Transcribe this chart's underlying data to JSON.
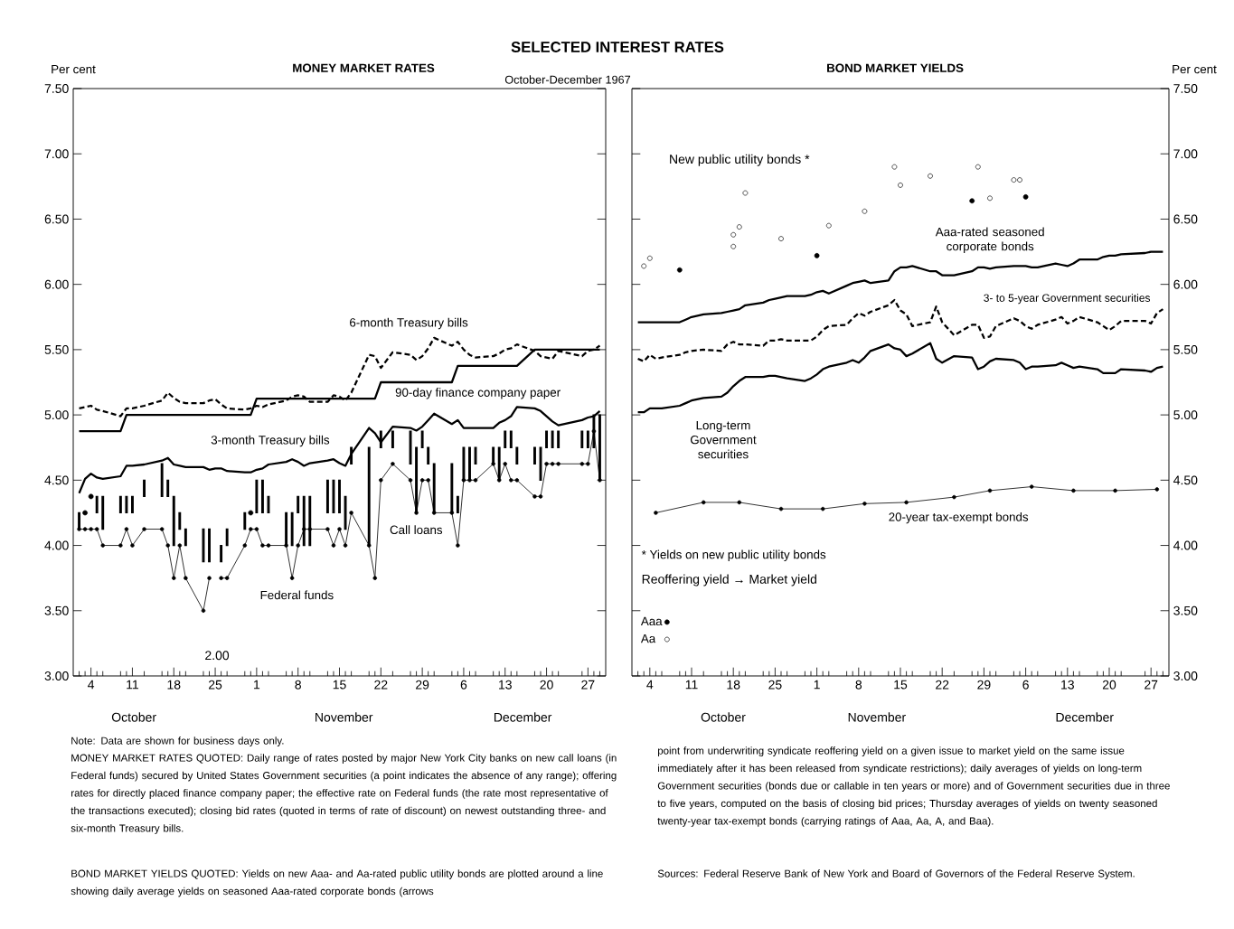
{
  "chart_data": [
    {
      "type": "line",
      "title": "MONEY MARKET RATES",
      "ylabel": "Per cent",
      "legend": false,
      "x": [
        "1967-10-02",
        "1967-10-03",
        "1967-10-04",
        "1967-10-05",
        "1967-10-06",
        "1967-10-09",
        "1967-10-10",
        "1967-10-11",
        "1967-10-13",
        "1967-10-16",
        "1967-10-17",
        "1967-10-18",
        "1967-10-19",
        "1967-10-20",
        "1967-10-23",
        "1967-10-24",
        "1967-10-25",
        "1967-10-26",
        "1967-10-27",
        "1967-10-30",
        "1967-10-31",
        "1967-11-01",
        "1967-11-02",
        "1967-11-03",
        "1967-11-06",
        "1967-11-07",
        "1967-11-08",
        "1967-11-09",
        "1967-11-10",
        "1967-11-13",
        "1967-11-14",
        "1967-11-15",
        "1967-11-16",
        "1967-11-17",
        "1967-11-20",
        "1967-11-21",
        "1967-11-22",
        "1967-11-24",
        "1967-11-27",
        "1967-11-28",
        "1967-11-29",
        "1967-11-30",
        "1967-12-01",
        "1967-12-04",
        "1967-12-05",
        "1967-12-06",
        "1967-12-07",
        "1967-12-08",
        "1967-12-11",
        "1967-12-12",
        "1967-12-13",
        "1967-12-14",
        "1967-12-15",
        "1967-12-18",
        "1967-12-19",
        "1967-12-20",
        "1967-12-21",
        "1967-12-22",
        "1967-12-26",
        "1967-12-27",
        "1967-12-28",
        "1967-12-29"
      ],
      "xlim": [
        "1967-10-01",
        "1967-12-30"
      ],
      "xticks": [
        {
          "value": "1967-10-02",
          "label": null
        },
        {
          "value": "1967-10-03",
          "label": null
        },
        {
          "value": "1967-10-04",
          "label": "4"
        },
        {
          "value": "1967-10-05",
          "label": null
        },
        {
          "value": "1967-10-06",
          "label": null
        },
        {
          "value": "1967-10-09",
          "label": null
        },
        {
          "value": "1967-10-10",
          "label": null
        },
        {
          "value": "1967-10-11",
          "label": "11"
        },
        {
          "value": "1967-10-13",
          "label": null
        },
        {
          "value": "1967-10-16",
          "label": null
        },
        {
          "value": "1967-10-17",
          "label": null
        },
        {
          "value": "1967-10-18",
          "label": "18"
        },
        {
          "value": "1967-10-19",
          "label": null
        },
        {
          "value": "1967-10-20",
          "label": null
        },
        {
          "value": "1967-10-23",
          "label": null
        },
        {
          "value": "1967-10-24",
          "label": null
        },
        {
          "value": "1967-10-25",
          "label": "25"
        },
        {
          "value": "1967-10-26",
          "label": null
        },
        {
          "value": "1967-10-27",
          "label": null
        },
        {
          "value": "1967-10-30",
          "label": null
        },
        {
          "value": "1967-10-31",
          "label": null
        },
        {
          "value": "1967-11-01",
          "label": "1"
        },
        {
          "value": "1967-11-02",
          "label": null
        },
        {
          "value": "1967-11-03",
          "label": null
        },
        {
          "value": "1967-11-06",
          "label": null
        },
        {
          "value": "1967-11-07",
          "label": null
        },
        {
          "value": "1967-11-08",
          "label": "8"
        },
        {
          "value": "1967-11-09",
          "label": null
        },
        {
          "value": "1967-11-10",
          "label": null
        },
        {
          "value": "1967-11-13",
          "label": null
        },
        {
          "value": "1967-11-14",
          "label": null
        },
        {
          "value": "1967-11-15",
          "label": "15"
        },
        {
          "value": "1967-11-16",
          "label": null
        },
        {
          "value": "1967-11-17",
          "label": null
        },
        {
          "value": "1967-11-20",
          "label": null
        },
        {
          "value": "1967-11-21",
          "label": null
        },
        {
          "value": "1967-11-22",
          "label": "22"
        },
        {
          "value": "1967-11-24",
          "label": null
        },
        {
          "value": "1967-11-27",
          "label": null
        },
        {
          "value": "1967-11-28",
          "label": null
        },
        {
          "value": "1967-11-29",
          "label": "29"
        },
        {
          "value": "1967-11-30",
          "label": null
        },
        {
          "value": "1967-12-01",
          "label": null
        },
        {
          "value": "1967-12-04",
          "label": null
        },
        {
          "value": "1967-12-05",
          "label": null
        },
        {
          "value": "1967-12-06",
          "label": "6"
        },
        {
          "value": "1967-12-07",
          "label": null
        },
        {
          "value": "1967-12-08",
          "label": null
        },
        {
          "value": "1967-12-11",
          "label": null
        },
        {
          "value": "1967-12-12",
          "label": null
        },
        {
          "value": "1967-12-13",
          "label": "13"
        },
        {
          "value": "1967-12-14",
          "label": null
        },
        {
          "value": "1967-12-15",
          "label": null
        },
        {
          "value": "1967-12-18",
          "label": null
        },
        {
          "value": "1967-12-19",
          "label": null
        },
        {
          "value": "1967-12-20",
          "label": "20"
        },
        {
          "value": "1967-12-21",
          "label": null
        },
        {
          "value": "1967-12-22",
          "label": null
        },
        {
          "value": "1967-12-26",
          "label": null
        },
        {
          "value": "1967-12-27",
          "label": "27"
        },
        {
          "value": "1967-12-28",
          "label": null
        },
        {
          "value": "1967-12-29",
          "label": null
        }
      ],
      "ylim": [
        3.0,
        7.5
      ],
      "yticks": [
        {
          "value": 3.0,
          "label": "3.00"
        },
        {
          "value": 3.5,
          "label": "3.50"
        },
        {
          "value": 4.0,
          "label": "4.00"
        },
        {
          "value": 4.5,
          "label": "4.50"
        },
        {
          "value": 5.0,
          "label": "5.00"
        },
        {
          "value": 5.5,
          "label": "5.50"
        },
        {
          "value": 6.0,
          "label": "6.00"
        },
        {
          "value": 6.5,
          "label": "6.50"
        },
        {
          "value": 7.0,
          "label": "7.00"
        },
        {
          "value": 7.5,
          "label": "7.50"
        }
      ],
      "series": [
        {
          "name": "6-month Treasury bills",
          "color": "#000000",
          "line_style": "dashed",
          "values": [
            5.05,
            5.06,
            5.07,
            5.04,
            5.03,
            4.99,
            5.05,
            5.05,
            5.07,
            5.11,
            5.17,
            5.13,
            5.1,
            5.09,
            5.09,
            5.11,
            5.12,
            5.08,
            5.05,
            5.04,
            5.05,
            5.07,
            5.06,
            5.08,
            5.11,
            5.14,
            5.15,
            5.14,
            5.1,
            5.1,
            5.15,
            5.14,
            5.11,
            5.17,
            5.46,
            5.45,
            5.36,
            5.48,
            5.46,
            5.42,
            5.45,
            5.51,
            5.59,
            5.53,
            5.56,
            5.5,
            5.46,
            5.44,
            5.45,
            5.47,
            5.5,
            5.51,
            5.54,
            5.49,
            5.45,
            5.44,
            5.43,
            5.49,
            5.45,
            5.49,
            5.5,
            5.53
          ]
        },
        {
          "name": "90-day finance company paper",
          "color": "#000000",
          "values": [
            4.875,
            4.875,
            4.875,
            4.875,
            4.875,
            4.875,
            5.0,
            5.0,
            5.0,
            5.0,
            5.0,
            5.0,
            5.0,
            5.0,
            5.0,
            5.0,
            5.0,
            5.0,
            5.0,
            5.0,
            5.0,
            5.125,
            5.125,
            5.125,
            5.125,
            5.125,
            5.125,
            5.125,
            5.125,
            5.125,
            5.125,
            5.125,
            5.125,
            5.125,
            5.125,
            5.125,
            5.25,
            5.25,
            5.25,
            5.25,
            5.25,
            5.25,
            5.25,
            5.25,
            5.375,
            5.375,
            5.375,
            5.375,
            5.375,
            5.375,
            5.375,
            5.375,
            5.375,
            5.5,
            5.5,
            5.5,
            5.5,
            5.5,
            5.5,
            5.5,
            5.5,
            5.5
          ]
        },
        {
          "name": "3-month Treasury bills",
          "color": "#000000",
          "values": [
            4.4,
            4.51,
            4.55,
            4.52,
            4.51,
            4.53,
            4.61,
            4.61,
            4.62,
            4.65,
            4.67,
            4.62,
            4.61,
            4.6,
            4.6,
            4.58,
            4.59,
            4.59,
            4.57,
            4.56,
            4.56,
            4.58,
            4.59,
            4.62,
            4.64,
            4.66,
            4.64,
            4.61,
            4.63,
            4.65,
            4.66,
            4.63,
            4.61,
            4.7,
            4.9,
            4.86,
            4.79,
            4.91,
            4.9,
            4.88,
            4.91,
            4.96,
            5.01,
            4.93,
            4.96,
            4.9,
            4.9,
            4.9,
            4.9,
            4.94,
            4.96,
            4.99,
            5.06,
            5.05,
            5.03,
            4.99,
            4.95,
            4.92,
            4.96,
            4.98,
            4.99,
            5.03
          ]
        },
        {
          "name": "Federal funds",
          "color": "#000000",
          "marker": "circle",
          "values": [
            4.125,
            4.125,
            4.125,
            4.125,
            4.0,
            4.0,
            4.125,
            4.0,
            4.125,
            4.125,
            4.0,
            3.75,
            4.0,
            3.75,
            3.5,
            3.75,
            null,
            3.75,
            3.75,
            4.0,
            4.125,
            4.125,
            4.0,
            4.0,
            4.0,
            3.75,
            4.0,
            4.125,
            4.125,
            4.125,
            4.0,
            4.125,
            4.0,
            4.25,
            4.0,
            3.75,
            4.5,
            4.625,
            4.5,
            4.25,
            4.5,
            4.5,
            4.25,
            4.25,
            4.0,
            4.5,
            4.5,
            4.5,
            4.625,
            4.5,
            4.625,
            4.5,
            4.5,
            4.375,
            4.375,
            4.625,
            4.625,
            4.625,
            4.625,
            4.625,
            4.875,
            4.5
          ]
        },
        {
          "name": "Call loans",
          "type": "bar",
          "color": "#000000",
          "base": [
            4.125,
            null,
            null,
            4.25,
            4.125,
            4.25,
            4.25,
            4.25,
            4.375,
            4.375,
            4.375,
            4.0,
            4.125,
            4.0,
            3.875,
            3.875,
            null,
            3.875,
            4.0,
            4.125,
            null,
            4.25,
            4.25,
            4.25,
            4.0,
            4.0,
            4.25,
            4.0,
            4.0,
            4.25,
            4.25,
            4.25,
            4.125,
            4.625,
            4.0,
            null,
            4.75,
            4.75,
            4.625,
            4.25,
            4.75,
            4.625,
            4.25,
            4.25,
            4.25,
            4.5,
            4.5,
            4.625,
            4.625,
            4.5,
            4.75,
            4.75,
            4.625,
            4.625,
            4.5,
            4.75,
            4.75,
            4.75,
            4.75,
            4.75,
            4.75,
            4.5
          ],
          "values": [
            0.125,
            null,
            null,
            0.125,
            0.25,
            0.125,
            0.125,
            0.125,
            0.125,
            0.25,
            0.125,
            0.375,
            0.125,
            0.125,
            0.25,
            0.25,
            null,
            0.125,
            0.125,
            0.125,
            null,
            0.25,
            0.25,
            0.125,
            0.25,
            0.25,
            0.125,
            0.375,
            0.375,
            0.25,
            0.25,
            0.25,
            0.25,
            0.125,
            0.75,
            null,
            0.125,
            0.125,
            0.25,
            0.5,
            0.125,
            0.125,
            0.375,
            0.375,
            0.125,
            0.25,
            0.25,
            0.125,
            0.125,
            0.25,
            0.125,
            0.125,
            0.125,
            0.125,
            0.25,
            0.125,
            0.125,
            0.125,
            0.125,
            0.125,
            0.25,
            0.5
          ]
        },
        {
          "type": "scatter",
          "color": "#000000",
          "marker": "circle",
          "x": [
            "1967-10-03",
            "1967-10-04",
            "1967-10-31"
          ],
          "values": [
            4.25,
            4.375,
            4.25
          ]
        }
      ],
      "annotations": [
        "2.00",
        "October",
        "November",
        "December"
      ]
    },
    {
      "type": "line",
      "title": "BOND MARKET YIELDS",
      "ylabel": "Per cent",
      "legend": "bottom left",
      "legend_title": "* Yields on new public utility bonds",
      "x": [
        "1967-10-02",
        "1967-10-03",
        "1967-10-04",
        "1967-10-05",
        "1967-10-06",
        "1967-10-09",
        "1967-10-10",
        "1967-10-11",
        "1967-10-13",
        "1967-10-16",
        "1967-10-17",
        "1967-10-18",
        "1967-10-19",
        "1967-10-20",
        "1967-10-23",
        "1967-10-24",
        "1967-10-25",
        "1967-10-26",
        "1967-10-27",
        "1967-10-30",
        "1967-10-31",
        "1967-11-01",
        "1967-11-02",
        "1967-11-03",
        "1967-11-06",
        "1967-11-07",
        "1967-11-08",
        "1967-11-09",
        "1967-11-10",
        "1967-11-13",
        "1967-11-14",
        "1967-11-15",
        "1967-11-16",
        "1967-11-17",
        "1967-11-20",
        "1967-11-21",
        "1967-11-22",
        "1967-11-24",
        "1967-11-27",
        "1967-11-28",
        "1967-11-29",
        "1967-11-30",
        "1967-12-01",
        "1967-12-04",
        "1967-12-05",
        "1967-12-06",
        "1967-12-07",
        "1967-12-08",
        "1967-12-11",
        "1967-12-12",
        "1967-12-13",
        "1967-12-14",
        "1967-12-15",
        "1967-12-18",
        "1967-12-19",
        "1967-12-20",
        "1967-12-21",
        "1967-12-22",
        "1967-12-26",
        "1967-12-27",
        "1967-12-28",
        "1967-12-29"
      ],
      "xlim": [
        "1967-10-01",
        "1967-12-30"
      ],
      "xticks": [
        {
          "value": "1967-10-02",
          "label": null
        },
        {
          "value": "1967-10-03",
          "label": null
        },
        {
          "value": "1967-10-04",
          "label": "4"
        },
        {
          "value": "1967-10-05",
          "label": null
        },
        {
          "value": "1967-10-06",
          "label": null
        },
        {
          "value": "1967-10-09",
          "label": null
        },
        {
          "value": "1967-10-10",
          "label": null
        },
        {
          "value": "1967-10-11",
          "label": "11"
        },
        {
          "value": "1967-10-13",
          "label": null
        },
        {
          "value": "1967-10-16",
          "label": null
        },
        {
          "value": "1967-10-17",
          "label": null
        },
        {
          "value": "1967-10-18",
          "label": "18"
        },
        {
          "value": "1967-10-19",
          "label": null
        },
        {
          "value": "1967-10-20",
          "label": null
        },
        {
          "value": "1967-10-23",
          "label": null
        },
        {
          "value": "1967-10-24",
          "label": null
        },
        {
          "value": "1967-10-25",
          "label": "25"
        },
        {
          "value": "1967-10-26",
          "label": null
        },
        {
          "value": "1967-10-27",
          "label": null
        },
        {
          "value": "1967-10-30",
          "label": null
        },
        {
          "value": "1967-10-31",
          "label": null
        },
        {
          "value": "1967-11-01",
          "label": "1"
        },
        {
          "value": "1967-11-02",
          "label": null
        },
        {
          "value": "1967-11-03",
          "label": null
        },
        {
          "value": "1967-11-06",
          "label": null
        },
        {
          "value": "1967-11-07",
          "label": null
        },
        {
          "value": "1967-11-08",
          "label": "8"
        },
        {
          "value": "1967-11-09",
          "label": null
        },
        {
          "value": "1967-11-10",
          "label": null
        },
        {
          "value": "1967-11-13",
          "label": null
        },
        {
          "value": "1967-11-14",
          "label": null
        },
        {
          "value": "1967-11-15",
          "label": "15"
        },
        {
          "value": "1967-11-16",
          "label": null
        },
        {
          "value": "1967-11-17",
          "label": null
        },
        {
          "value": "1967-11-20",
          "label": null
        },
        {
          "value": "1967-11-21",
          "label": null
        },
        {
          "value": "1967-11-22",
          "label": "22"
        },
        {
          "value": "1967-11-24",
          "label": null
        },
        {
          "value": "1967-11-27",
          "label": null
        },
        {
          "value": "1967-11-28",
          "label": null
        },
        {
          "value": "1967-11-29",
          "label": "29"
        },
        {
          "value": "1967-11-30",
          "label": null
        },
        {
          "value": "1967-12-01",
          "label": null
        },
        {
          "value": "1967-12-04",
          "label": null
        },
        {
          "value": "1967-12-05",
          "label": null
        },
        {
          "value": "1967-12-06",
          "label": "6"
        },
        {
          "value": "1967-12-07",
          "label": null
        },
        {
          "value": "1967-12-08",
          "label": null
        },
        {
          "value": "1967-12-11",
          "label": null
        },
        {
          "value": "1967-12-12",
          "label": null
        },
        {
          "value": "1967-12-13",
          "label": "13"
        },
        {
          "value": "1967-12-14",
          "label": null
        },
        {
          "value": "1967-12-15",
          "label": null
        },
        {
          "value": "1967-12-18",
          "label": null
        },
        {
          "value": "1967-12-19",
          "label": null
        },
        {
          "value": "1967-12-20",
          "label": "20"
        },
        {
          "value": "1967-12-21",
          "label": null
        },
        {
          "value": "1967-12-22",
          "label": null
        },
        {
          "value": "1967-12-26",
          "label": null
        },
        {
          "value": "1967-12-27",
          "label": "27"
        },
        {
          "value": "1967-12-28",
          "label": null
        },
        {
          "value": "1967-12-29",
          "label": null
        }
      ],
      "ylim": [
        3.0,
        7.5
      ],
      "yticks": [
        {
          "value": 3.0,
          "label": "3.00"
        },
        {
          "value": 3.5,
          "label": "3.50"
        },
        {
          "value": 4.0,
          "label": "4.00"
        },
        {
          "value": 4.5,
          "label": "4.50"
        },
        {
          "value": 5.0,
          "label": "5.00"
        },
        {
          "value": 5.5,
          "label": "5.50"
        },
        {
          "value": 6.0,
          "label": "6.00"
        },
        {
          "value": 6.5,
          "label": "6.50"
        },
        {
          "value": 7.0,
          "label": "7.00"
        },
        {
          "value": 7.5,
          "label": "7.50"
        }
      ],
      "series": [
        {
          "name": "Aaa-rated seasoned corporate bonds",
          "color": "#000000",
          "values": [
            5.71,
            5.71,
            5.71,
            5.71,
            5.71,
            5.71,
            5.73,
            5.75,
            5.77,
            5.78,
            5.79,
            5.8,
            5.81,
            5.84,
            5.86,
            5.88,
            5.89,
            5.9,
            5.91,
            5.91,
            5.92,
            5.94,
            5.95,
            5.93,
            5.99,
            6.01,
            6.02,
            6.03,
            6.01,
            6.03,
            6.1,
            6.13,
            6.13,
            6.14,
            6.1,
            6.1,
            6.07,
            6.07,
            6.1,
            6.13,
            6.13,
            6.12,
            6.13,
            6.14,
            6.14,
            6.14,
            6.13,
            6.13,
            6.16,
            6.15,
            6.14,
            6.16,
            6.19,
            6.19,
            6.21,
            6.22,
            6.22,
            6.23,
            6.24,
            6.25,
            6.25,
            6.25
          ]
        },
        {
          "name": "3- to 5-year Government securities",
          "color": "#000000",
          "line_style": "dashed",
          "values": [
            5.43,
            5.41,
            5.46,
            5.43,
            5.44,
            5.46,
            5.48,
            5.49,
            5.5,
            5.49,
            5.54,
            5.56,
            5.54,
            5.54,
            5.53,
            5.57,
            5.57,
            5.58,
            5.57,
            5.57,
            5.57,
            5.6,
            5.65,
            5.68,
            5.69,
            5.74,
            5.78,
            5.76,
            5.79,
            5.84,
            5.88,
            5.8,
            5.77,
            5.68,
            5.71,
            5.83,
            5.71,
            5.61,
            5.69,
            5.69,
            5.59,
            5.6,
            5.68,
            5.74,
            5.72,
            5.68,
            5.66,
            5.69,
            5.73,
            5.75,
            5.7,
            5.72,
            5.75,
            5.71,
            5.68,
            5.65,
            5.68,
            5.72,
            5.72,
            5.7,
            5.78,
            5.81
          ]
        },
        {
          "name": "Long-term Government securities",
          "color": "#000000",
          "values": [
            5.02,
            5.02,
            5.05,
            5.05,
            5.05,
            5.07,
            5.09,
            5.11,
            5.13,
            5.14,
            5.17,
            5.22,
            5.26,
            5.29,
            5.29,
            5.3,
            5.3,
            5.29,
            5.28,
            5.26,
            5.28,
            5.31,
            5.35,
            5.37,
            5.4,
            5.42,
            5.4,
            5.44,
            5.49,
            5.54,
            5.51,
            5.5,
            5.45,
            5.47,
            5.55,
            5.43,
            5.4,
            5.45,
            5.44,
            5.35,
            5.37,
            5.41,
            5.43,
            5.42,
            5.4,
            5.35,
            5.37,
            5.37,
            5.38,
            5.4,
            5.38,
            5.36,
            5.37,
            5.35,
            5.32,
            5.32,
            5.32,
            5.35,
            5.34,
            5.33,
            5.36,
            5.37
          ]
        },
        {
          "name": "20-year tax-exempt bonds",
          "color": "#000000",
          "marker": "circle",
          "x": [
            "1967-10-05",
            "1967-10-13",
            "1967-10-19",
            "1967-10-26",
            "1967-11-02",
            "1967-11-09",
            "1967-11-16",
            "1967-11-24",
            "1967-11-30",
            "1967-12-07",
            "1967-12-14",
            "1967-12-21",
            "1967-12-28"
          ],
          "values": [
            4.25,
            4.33,
            4.33,
            4.28,
            4.28,
            4.32,
            4.33,
            4.37,
            4.42,
            4.45,
            4.42,
            4.42,
            4.43
          ]
        },
        {
          "name": "Aaa",
          "type": "scatter",
          "color": "#000000",
          "marker": "circle",
          "x": [
            "1967-10-09",
            "1967-11-01",
            "1967-11-27",
            "1967-12-06"
          ],
          "values": [
            6.11,
            6.22,
            6.64,
            6.67
          ]
        },
        {
          "name": "Aa",
          "type": "scatter",
          "color": "#000000",
          "marker": "circle",
          "x": [
            "1967-10-03",
            "1967-10-04",
            "1967-10-18",
            "1967-10-18",
            "1967-10-19",
            "1967-10-20",
            "1967-10-26",
            "1967-11-03",
            "1967-11-09",
            "1967-11-14",
            "1967-11-15",
            "1967-11-20",
            "1967-11-28",
            "1967-11-30",
            "1967-12-04",
            "1967-12-05"
          ],
          "values": [
            6.14,
            6.2,
            6.29,
            6.38,
            6.44,
            6.7,
            6.35,
            6.45,
            6.56,
            6.9,
            6.76,
            6.83,
            6.9,
            6.66,
            6.8,
            6.8
          ]
        }
      ],
      "annotations": [
        "Reoffering yield → Market yield",
        "New public utility bonds *",
        "October",
        "November",
        "December"
      ]
    },
    {
      "type": "other",
      "title": "SELECTED INTEREST RATES",
      "subtitle": "October-December 1967",
      "annotations": [
        "Note: Data are shown for business days only.",
        "MONEY MARKET RATES QUOTED: Daily range of rates posted by major New York City banks on new call loans (in Federal funds) secured by United States Government securities (a point indicates the absence of any range); offering rates for directly placed finance company paper; the effective rate on Federal funds (the rate most representative of the transactions executed); closing bid rates (quoted in terms of rate of discount) on newest outstanding three- and six-month Treasury bills.",
        "BOND MARKET YIELDS QUOTED: Yields on new Aaa- and Aa-rated public utility bonds are plotted around a line showing daily average yields on seasoned Aaa-rated corporate bonds (arrows",
        "point from underwriting syndicate reoffering yield on a given issue to market yield on the same issue immediately after it has been released from syndicate restrictions); daily averages of yields on long-term Government securities (bonds due or callable in ten years or more) and of Government securities due in three to five years, computed on the basis of closing bid prices; Thursday averages of yields on twenty seasoned twenty-year tax-exempt bonds (carrying ratings of Aaa, Aa, A, and Baa).",
        "Sources: Federal Reserve Bank of New York and Board of Governors of the Federal Reserve System."
      ]
    }
  ]
}
